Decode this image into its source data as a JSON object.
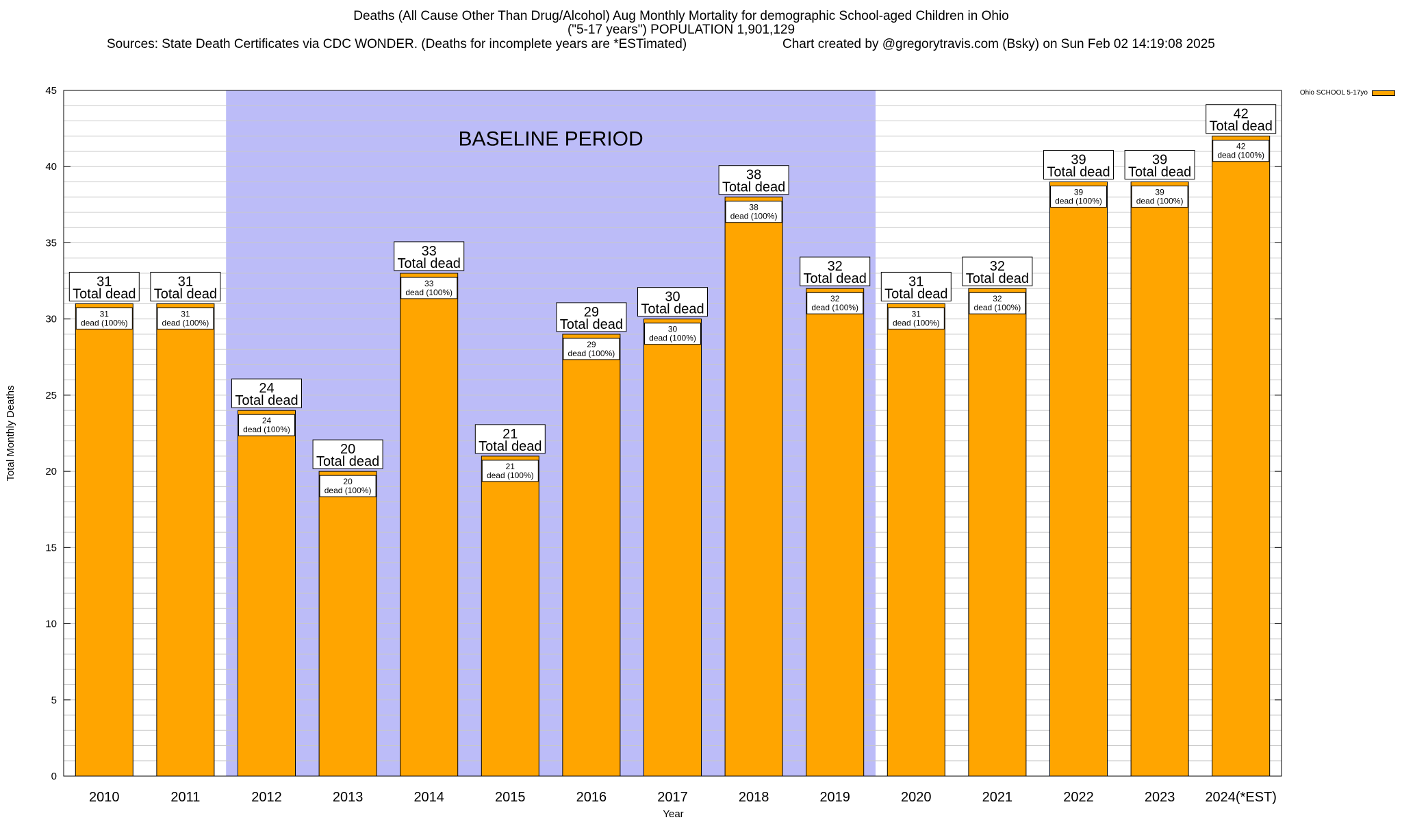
{
  "title_lines": [
    "Deaths (All Cause Other Than Drug/Alcohol) Aug Monthly Mortality for demographic School-aged Children in Ohio",
    "(\"5-17 years\") POPULATION 1,901,129"
  ],
  "sources": "Sources: State Death Certificates via CDC WONDER. (Deaths for incomplete years are *ESTimated)",
  "credit": "Chart created by @gregorytravis.com (Bsky) on Sun Feb 02 14:19:08 2025",
  "legend_label": "Ohio SCHOOL 5-17yo",
  "baseline_label": "BASELINE PERIOD",
  "colors": {
    "bar": "#ffa500",
    "baseline": "#bcbcf8",
    "grid": "#c8c8c8"
  },
  "chart_data": {
    "type": "bar",
    "title": "Deaths (All Cause Other Than Drug/Alcohol) Aug Monthly Mortality for demographic School-aged Children in Ohio",
    "xlabel": "Year",
    "ylabel": "Total Monthly Deaths",
    "ylim": [
      0,
      45
    ],
    "yticks": [
      0,
      5,
      10,
      15,
      20,
      25,
      30,
      35,
      40,
      45
    ],
    "categories": [
      "2010",
      "2011",
      "2012",
      "2013",
      "2014",
      "2015",
      "2016",
      "2017",
      "2018",
      "2019",
      "2020",
      "2021",
      "2022",
      "2023",
      "2024(*EST)"
    ],
    "series": [
      {
        "name": "Ohio SCHOOL 5-17yo",
        "values": [
          31,
          31,
          24,
          20,
          33,
          21,
          29,
          30,
          38,
          32,
          31,
          32,
          39,
          39,
          42
        ]
      }
    ],
    "total_label": "Total dead",
    "inner_label": "dead (100%)",
    "baseline_period": [
      "2012",
      "2019"
    ]
  }
}
